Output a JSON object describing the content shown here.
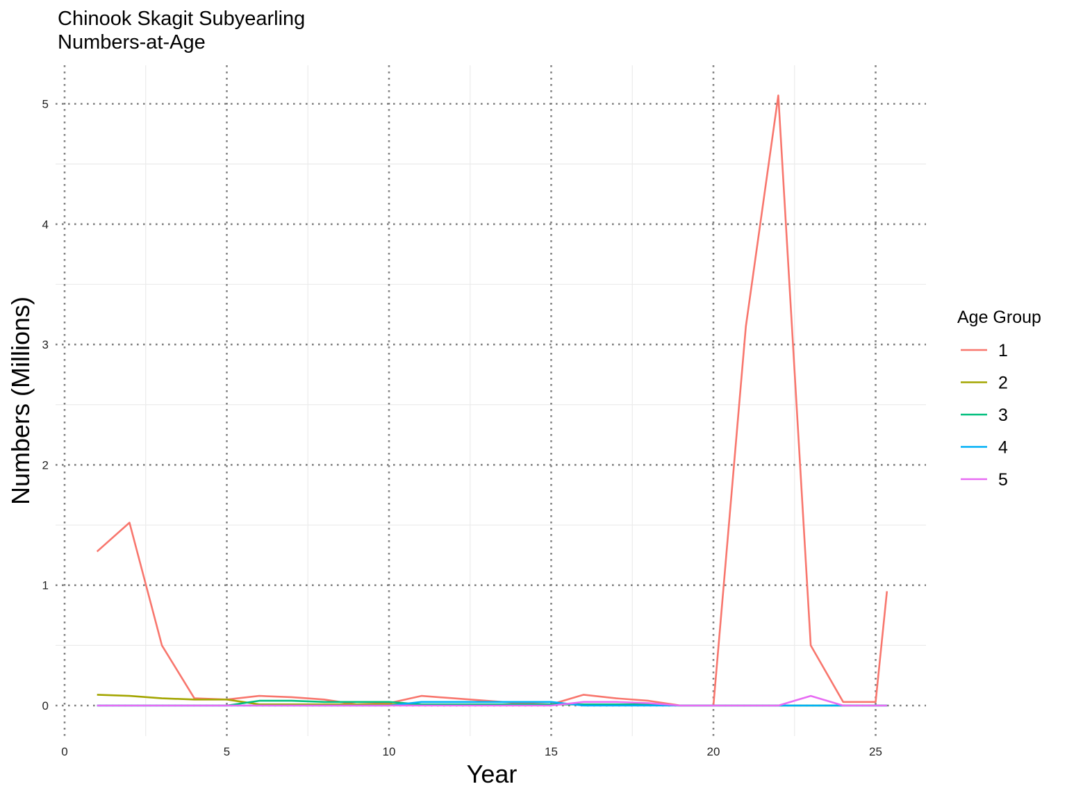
{
  "chart_data": {
    "type": "line",
    "title": "Chinook Skagit Subyearling\nNumbers-at-Age",
    "xlabel": "Year",
    "ylabel": "Numbers (Millions)",
    "xlim": [
      0,
      26.5
    ],
    "ylim": [
      -0.27,
      5.32
    ],
    "x_ticks": [
      0,
      5,
      10,
      15,
      20,
      25
    ],
    "y_ticks": [
      0,
      1,
      2,
      3,
      4,
      5
    ],
    "grid": true,
    "legend": {
      "title": "Age Group",
      "position": "right"
    },
    "x": [
      1,
      2,
      3,
      4,
      5,
      6,
      7,
      8,
      9,
      10,
      11,
      12,
      13,
      14,
      15,
      16,
      17,
      18,
      19,
      20,
      21,
      22,
      23,
      24,
      25,
      25.35
    ],
    "series": [
      {
        "name": "1",
        "color": "#F8766D",
        "values": [
          1.28,
          1.52,
          0.5,
          0.06,
          0.05,
          0.08,
          0.07,
          0.05,
          0.01,
          0.02,
          0.08,
          0.06,
          0.04,
          0.02,
          0.01,
          0.09,
          0.06,
          0.04,
          0.0,
          0.0,
          3.15,
          5.07,
          0.5,
          0.03,
          0.03,
          0.95
        ]
      },
      {
        "name": "2",
        "color": "#A3A500",
        "values": [
          0.09,
          0.08,
          0.06,
          0.05,
          0.05,
          0.01,
          0.01,
          0.01,
          0.01,
          0.01,
          0.01,
          0.01,
          0.01,
          0.01,
          0.01,
          0.01,
          0.01,
          0.01,
          0.0,
          0.0,
          0.0,
          0.0,
          0.0,
          0.0,
          0.0,
          0.0
        ]
      },
      {
        "name": "3",
        "color": "#00BF7D",
        "values": [
          0.0,
          0.0,
          0.0,
          0.0,
          0.0,
          0.04,
          0.04,
          0.03,
          0.03,
          0.03,
          0.01,
          0.01,
          0.01,
          0.01,
          0.01,
          0.01,
          0.01,
          0.01,
          0.0,
          0.0,
          0.0,
          0.0,
          0.0,
          0.0,
          0.0,
          0.0
        ]
      },
      {
        "name": "4",
        "color": "#00B0F6",
        "values": [
          0.0,
          0.0,
          0.0,
          0.0,
          0.0,
          0.0,
          0.0,
          0.0,
          0.0,
          0.0,
          0.03,
          0.03,
          0.03,
          0.03,
          0.03,
          0.0,
          0.0,
          0.0,
          0.0,
          0.0,
          0.0,
          0.0,
          0.0,
          0.0,
          0.0,
          0.0
        ]
      },
      {
        "name": "5",
        "color": "#E76BF3",
        "values": [
          0.0,
          0.0,
          0.0,
          0.0,
          0.0,
          0.0,
          0.0,
          0.0,
          0.0,
          0.0,
          0.0,
          0.0,
          0.0,
          0.0,
          0.0,
          0.03,
          0.03,
          0.02,
          0.0,
          0.0,
          0.0,
          0.0,
          0.08,
          0.0,
          0.0,
          0.0
        ]
      }
    ]
  }
}
